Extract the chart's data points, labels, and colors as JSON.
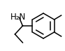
{
  "background_color": "#ffffff",
  "line_color": "#000000",
  "text_color": "#000000",
  "figsize": [
    0.93,
    0.73
  ],
  "dpi": 100,
  "h2n_label": "H₂N",
  "h2n_fontsize": 8.5
}
